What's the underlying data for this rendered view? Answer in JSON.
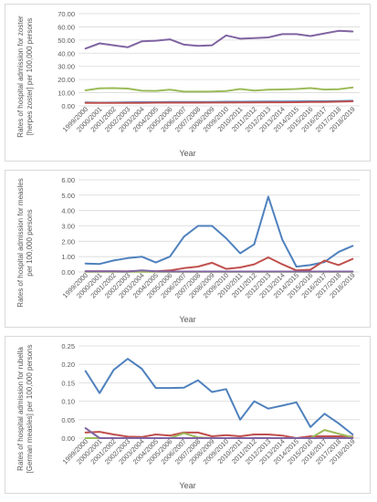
{
  "chart_data": [
    {
      "type": "line",
      "ylabel": "Rates of hospital admission for zoster [herpes zoster] per 100,000 persons",
      "xlabel": "Year",
      "ylim": [
        0,
        70
      ],
      "ytick_step": 10,
      "ytick_labels": [
        "0.00",
        "10.00",
        "20.00",
        "30.00",
        "40.00",
        "50.00",
        "60.00",
        "70.00"
      ],
      "grid": true,
      "categories": [
        "1999/2000",
        "2000/2001",
        "2001/2002",
        "2002/2003",
        "2003/2004",
        "2004/2005",
        "2005/2006",
        "2006/2007",
        "2007/2008",
        "2008/2009",
        "2009/2010",
        "2010/2011",
        "2011/2012",
        "2012/2013",
        "2013/2014",
        "2014/2015",
        "2015/2016",
        "2016/2017",
        "2017/2018",
        "2018/2019"
      ],
      "series": [
        {
          "color": "#8064a2",
          "values": [
            43.5,
            47.5,
            46,
            44.5,
            49,
            49.5,
            50.5,
            46.5,
            45.5,
            46,
            53.5,
            51,
            51.5,
            52,
            54.5,
            54.5,
            53,
            55,
            57,
            56.5
          ]
        },
        {
          "color": "#9bbb59",
          "values": [
            11.8,
            13.3,
            13.5,
            13.2,
            11.5,
            11.4,
            12.3,
            10.8,
            10.8,
            10.9,
            11.2,
            12.8,
            11.6,
            12.3,
            12.5,
            12.8,
            13.5,
            12.4,
            12.7,
            13.9
          ]
        },
        {
          "color": "#4f81bd",
          "values": [
            2.6,
            2.4,
            2.5,
            2.7,
            2.8,
            2.8,
            3,
            2.9,
            3,
            3,
            3.1,
            3.1,
            3.2,
            3.3,
            3.3,
            3.4,
            3.5,
            3.5,
            3.7,
            3.9
          ]
        },
        {
          "color": "#c0504d",
          "values": [
            2.3,
            2.2,
            2.3,
            2.3,
            2.3,
            2.4,
            2.4,
            2.4,
            2.4,
            2.5,
            2.5,
            2.6,
            2.6,
            2.7,
            2.7,
            2.8,
            2.9,
            3,
            3.2,
            3.5
          ]
        }
      ]
    },
    {
      "type": "line",
      "ylabel": "Rates of hospital admission for measles per 100,000 persons",
      "xlabel": "Year",
      "ylim": [
        0,
        6
      ],
      "ytick_step": 1,
      "ytick_labels": [
        "0.00",
        "1.00",
        "2.00",
        "3.00",
        "4.00",
        "5.00",
        "6.00"
      ],
      "grid": true,
      "categories": [
        "1999/2000",
        "2000/2001",
        "2001/2002",
        "2002/2003",
        "2003/2004",
        "2004/2005",
        "2005/2006",
        "2006/2007",
        "2007/2008",
        "2008/2009",
        "2009/2010",
        "2010/2011",
        "2011/2012",
        "2012/2013",
        "2013/2014",
        "2014/2015",
        "2015/2016",
        "2016/2017",
        "2017/2018",
        "2018/2019"
      ],
      "series": [
        {
          "color": "#4f81bd",
          "values": [
            0.55,
            0.52,
            0.75,
            0.9,
            1.0,
            0.62,
            1.0,
            2.3,
            3.0,
            3.0,
            2.2,
            1.22,
            1.8,
            4.9,
            2.1,
            0.35,
            0.45,
            0.65,
            1.3,
            1.7
          ]
        },
        {
          "color": "#c0504d",
          "values": [
            0.05,
            0.05,
            0.05,
            0.05,
            0.05,
            0.05,
            0.1,
            0.25,
            0.35,
            0.6,
            0.2,
            0.3,
            0.5,
            0.95,
            0.5,
            0.1,
            0.15,
            0.75,
            0.45,
            0.85
          ]
        },
        {
          "color": "#9bbb59",
          "values": [
            0.02,
            0.02,
            0.02,
            0.02,
            0.02,
            0.02,
            0.02,
            0.02,
            0.02,
            0.02,
            0.02,
            0.02,
            0.02,
            0.02,
            0.02,
            0.02,
            0.02,
            0.02,
            0.02,
            0.02
          ]
        },
        {
          "color": "#8064a2",
          "values": [
            0.05,
            0.04,
            0.04,
            0.03,
            0.1,
            0.05,
            0.03,
            0.03,
            0.03,
            0.03,
            0.03,
            0.03,
            0.03,
            0.03,
            0.03,
            0.03,
            0.03,
            0.03,
            0.03,
            0.03
          ]
        }
      ]
    },
    {
      "type": "line",
      "ylabel": "Rates of hospital admission for rubella [German measles] per 100,000 persons",
      "xlabel": "Year",
      "ylim": [
        0,
        0.25
      ],
      "ytick_step": 0.05,
      "ytick_labels": [
        "0.00",
        "0.05",
        "0.10",
        "0.15",
        "0.20",
        "0.25"
      ],
      "grid": true,
      "categories": [
        "1999/2000",
        "2000/2001",
        "2001/2002",
        "2002/2003",
        "2003/2004",
        "2004/2005",
        "2005/2006",
        "2006/2007",
        "2007/2008",
        "2008/2009",
        "2009/2010",
        "2010/2011",
        "2011/2012",
        "2012/2013",
        "2013/2014",
        "2014/2015",
        "2015/2016",
        "2016/2017",
        "2017/2018",
        "2018/2019"
      ],
      "series": [
        {
          "color": "#4f81bd",
          "values": [
            0.182,
            0.122,
            0.185,
            0.215,
            0.188,
            0.136,
            0.136,
            0.137,
            0.157,
            0.125,
            0.133,
            0.05,
            0.1,
            0.08,
            0.088,
            0.097,
            0.03,
            0.066,
            0.04,
            0.01
          ]
        },
        {
          "color": "#c0504d",
          "values": [
            0.015,
            0.017,
            0.01,
            0.004,
            0.003,
            0.01,
            0.007,
            0.015,
            0.015,
            0.005,
            0.008,
            0.005,
            0.01,
            0.01,
            0.007,
            0.0,
            0.005,
            0.005,
            0.005,
            0.004
          ]
        },
        {
          "color": "#9bbb59",
          "values": [
            0.0,
            0.0,
            0.0,
            0.0,
            0.0,
            0.0,
            0.0,
            0.013,
            0.002,
            0.0,
            0.0,
            0.0,
            0.0,
            0.0,
            0.0,
            0.0,
            0.0,
            0.022,
            0.012,
            0.002
          ]
        },
        {
          "color": "#8064a2",
          "values": [
            0.027,
            0.0,
            0.0,
            0.0,
            0.0,
            0.0,
            0.0,
            0.0,
            0.0,
            0.0,
            0.0,
            0.0,
            0.0,
            0.0,
            0.0,
            0.0,
            0.0,
            0.0,
            0.0,
            0.0
          ]
        }
      ]
    }
  ]
}
